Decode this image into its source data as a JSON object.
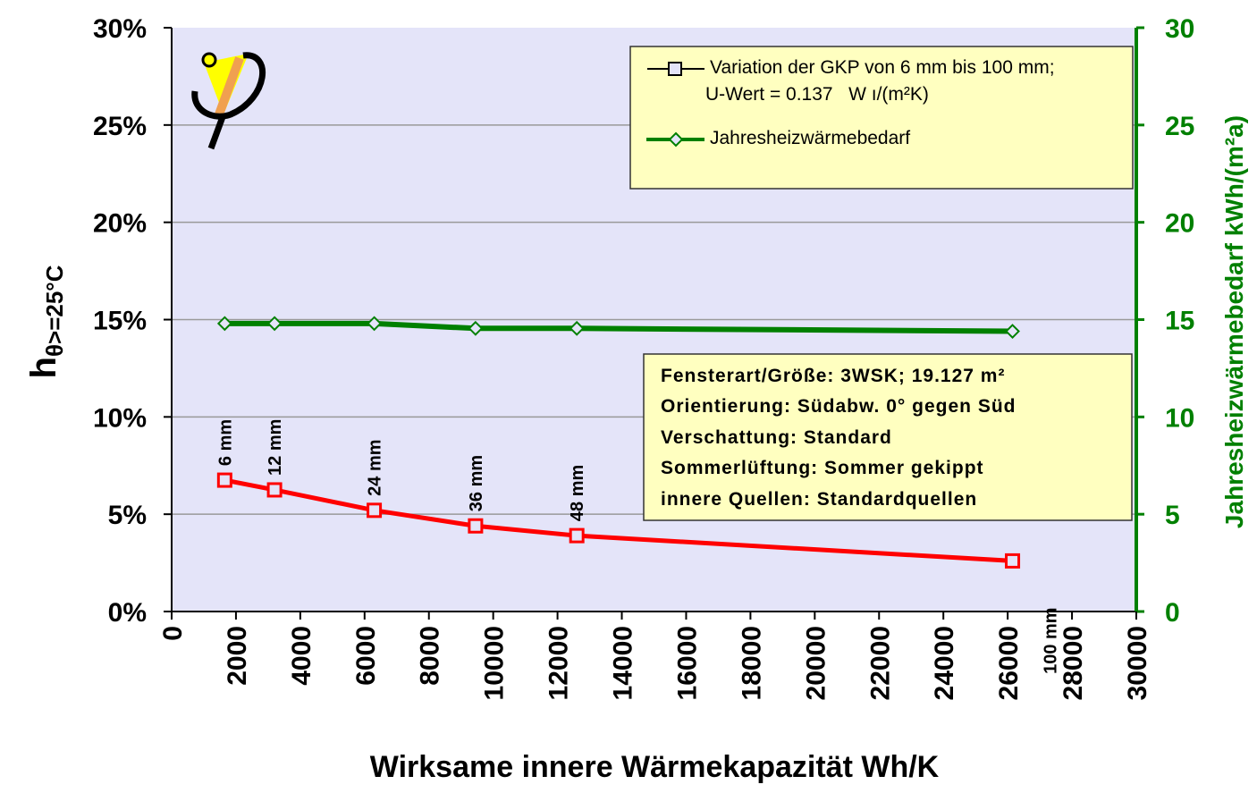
{
  "chart_data": {
    "type": "line",
    "xlabel": "Wirksame innere Wärmekapazität Wh/K",
    "ylabel_main": "h",
    "ylabel_sub": "θ>=25°C",
    "y2label": "Jahresheizwärmebedarf kWh/(m²a)",
    "xlim": [
      0,
      30000
    ],
    "ylim": [
      0,
      30
    ],
    "y2lim": [
      0,
      30
    ],
    "x_ticks": [
      "0",
      "2000",
      "4000",
      "6000",
      "8000",
      "10000",
      "12000",
      "14000",
      "16000",
      "18000",
      "20000",
      "22000",
      "24000",
      "26000",
      "28000",
      "30000"
    ],
    "y_ticks": [
      "0%",
      "5%",
      "10%",
      "15%",
      "20%",
      "25%",
      "30%"
    ],
    "y2_ticks": [
      "0",
      "5",
      "10",
      "15",
      "20",
      "25",
      "30"
    ],
    "grid": "horizontal",
    "series": [
      {
        "name": "Variation der GKP von 6 mm bis 100 mm;",
        "name_line2": "U-Wert = 0.137   W ı/(m²K)",
        "axis": "left",
        "color": "#ff0000",
        "marker": "square",
        "x": [
          1650,
          3200,
          6300,
          9450,
          12600,
          26150
        ],
        "y": [
          6.75,
          6.25,
          5.2,
          4.4,
          3.9,
          2.6
        ],
        "point_labels": [
          "6 mm",
          "12 mm",
          "24 mm",
          "36 mm",
          "48 mm",
          "100 mm"
        ]
      },
      {
        "name": "Jahresheizwärmebedarf",
        "axis": "right",
        "color": "#008000",
        "marker": "diamond",
        "x": [
          1650,
          3200,
          6300,
          9450,
          12600,
          26150
        ],
        "y": [
          14.8,
          14.8,
          14.8,
          14.55,
          14.55,
          14.4
        ]
      }
    ],
    "info_box": [
      "Fensterart/Größe: 3WSK; 19.127 m²",
      "Orientierung: Südabw. 0° gegen Süd",
      "Verschattung: Standard",
      "Sommerlüftung: Sommer gekippt",
      "innere Quellen: Standardquellen"
    ],
    "legend_position": "top-right"
  },
  "colors": {
    "plot_bg": "#e4e4f9",
    "legend_bg": "#ffffc0",
    "right_axis": "#008000"
  }
}
